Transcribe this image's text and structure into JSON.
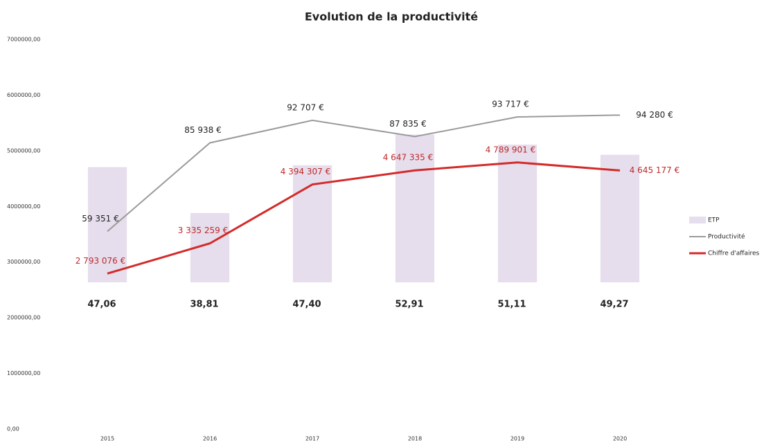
{
  "chart_data": {
    "type": "combo",
    "title": "Evolution de la productivité",
    "categories": [
      "2015",
      "2016",
      "2017",
      "2018",
      "2019",
      "2020"
    ],
    "ylim": [
      0,
      7000000
    ],
    "yticks": [
      {
        "value": 0,
        "label": "0,00"
      },
      {
        "value": 1000000,
        "label": "1000000,00"
      },
      {
        "value": 2000000,
        "label": "2000000,00"
      },
      {
        "value": 3000000,
        "label": "3000000,00"
      },
      {
        "value": 4000000,
        "label": "4000000,00"
      },
      {
        "value": 5000000,
        "label": "5000000,00"
      },
      {
        "value": 6000000,
        "label": "6000000,00"
      },
      {
        "value": 7000000,
        "label": "7000000,00"
      }
    ],
    "y2lim": [
      0,
      70
    ],
    "y3lim": [
      0,
      117000
    ],
    "grid": false,
    "legend": "right",
    "series": [
      {
        "name": "ETP",
        "type": "bar",
        "axis": "y2",
        "color": "#e6deec",
        "values": [
          47.06,
          38.81,
          47.4,
          52.91,
          51.11,
          49.27
        ],
        "value_labels": [
          "47,06",
          "38,81",
          "47,40",
          "52,91",
          "51,11",
          "49,27"
        ]
      },
      {
        "name": "Productivité",
        "type": "line",
        "axis": "y3",
        "color": "#9a9a9a",
        "values": [
          59351,
          85938,
          92707,
          87835,
          93717,
          94280
        ],
        "value_labels": [
          "59 351 €",
          "85 938 €",
          "92 707 €",
          "87 835 €",
          "93 717 €",
          "94 280 €"
        ]
      },
      {
        "name": "Chiffre d'affaires",
        "type": "line",
        "axis": "y",
        "color": "#d42a2a",
        "values": [
          2793076,
          3335259,
          4394307,
          4647335,
          4789901,
          4645177
        ],
        "value_labels": [
          "2 793 076 €",
          "3 335 259 €",
          "4 394 307 €",
          "4 647 335 €",
          "4 789 901 €",
          "4 645 177 €"
        ]
      }
    ]
  }
}
